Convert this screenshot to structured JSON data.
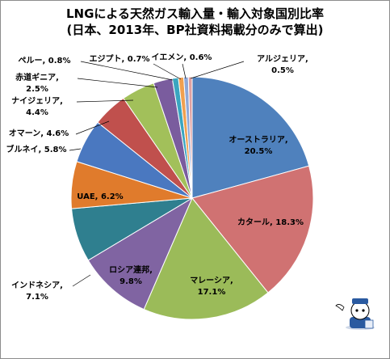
{
  "chart_data": {
    "type": "pie",
    "title": "LNGによる天然ガス輸入量・輸入対象国別比率",
    "subtitle": "(日本、2013年、BP社資料掲載分のみで算出)",
    "slices": [
      {
        "label": "オーストラリア",
        "value": 20.5,
        "display": "20.5%",
        "color": "#4f81bd"
      },
      {
        "label": "カタール",
        "value": 18.3,
        "display": "18.3%",
        "color": "#d07272"
      },
      {
        "label": "マレーシア",
        "value": 17.1,
        "display": "17.1%",
        "color": "#9bbb59"
      },
      {
        "label": "ロシア連邦",
        "value": 9.8,
        "display": "9.8%",
        "color": "#8064a2"
      },
      {
        "label": "インドネシア",
        "value": 7.1,
        "display": "7.1%",
        "color": "#2f7f8f"
      },
      {
        "label": "UAE",
        "value": 6.2,
        "display": "6.2%",
        "color": "#e07b2c"
      },
      {
        "label": "ブルネイ",
        "value": 5.8,
        "display": "5.8%",
        "color": "#4a78c0"
      },
      {
        "label": "オマーン",
        "value": 4.6,
        "display": "4.6%",
        "color": "#c0504d"
      },
      {
        "label": "ナイジェリア",
        "value": 4.4,
        "display": "4.4%",
        "color": "#a2c05a"
      },
      {
        "label": "赤道ギニア",
        "value": 2.5,
        "display": "2.5%",
        "color": "#7a5c9e"
      },
      {
        "label": "ペルー",
        "value": 0.8,
        "display": "0.8%",
        "color": "#3aa5c0"
      },
      {
        "label": "エジプト",
        "value": 0.7,
        "display": "0.7%",
        "color": "#f0a050"
      },
      {
        "label": "イエメン",
        "value": 0.6,
        "display": "0.6%",
        "color": "#8fa8d8"
      },
      {
        "label": "アルジェリア",
        "value": 0.5,
        "display": "0.5%",
        "color": "#e0a0a0"
      }
    ],
    "start_angle": "12 o'clock",
    "direction": "clockwise"
  },
  "colors": {
    "border": "#8c8c8c",
    "slice_edge": "#ffffff"
  }
}
